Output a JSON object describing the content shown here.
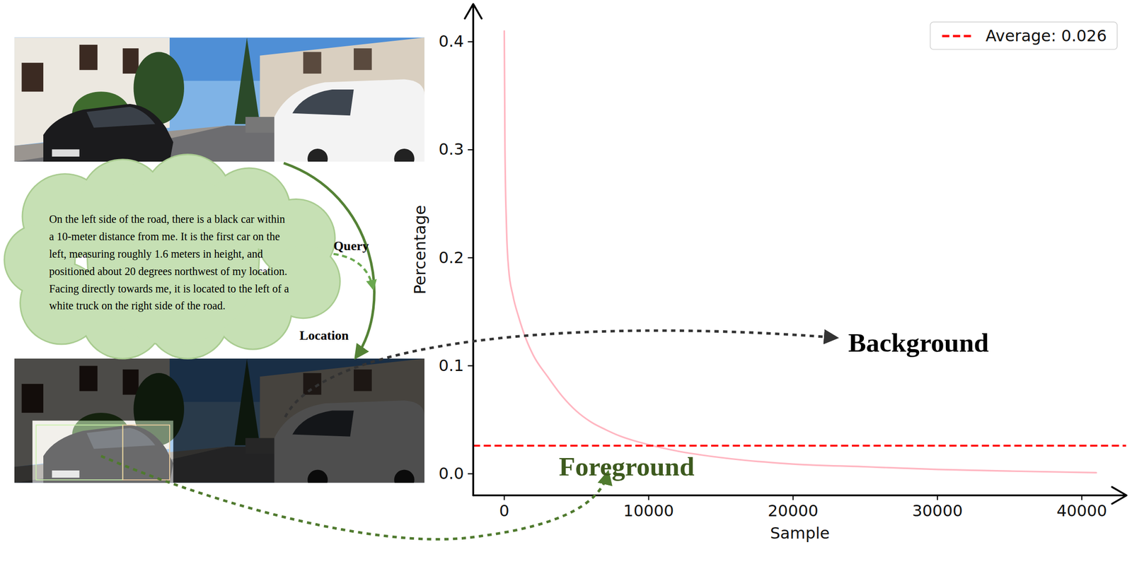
{
  "chart_data": {
    "type": "line",
    "xlabel": "Sample",
    "ylabel": "Percentage",
    "x": [
      0,
      50,
      150,
      300,
      600,
      1000,
      1500,
      2000,
      3000,
      4000,
      5000,
      6000,
      7000,
      8000,
      10000,
      12000,
      15000,
      20000,
      25000,
      30000,
      35000,
      41000
    ],
    "series": [
      {
        "color": "#ffb6c1",
        "values": [
          0.41,
          0.3,
          0.23,
          0.19,
          0.165,
          0.145,
          0.125,
          0.11,
          0.09,
          0.072,
          0.058,
          0.048,
          0.041,
          0.035,
          0.027,
          0.021,
          0.015,
          0.009,
          0.0065,
          0.004,
          0.0025,
          0.001
        ]
      },
      {
        "name": "Average: 0.026",
        "type": "hline",
        "color": "#ff0000",
        "line_style": "dashed",
        "value": 0.026
      }
    ],
    "xlim": [
      -2150,
      43100
    ],
    "ylim": [
      -0.02,
      0.435
    ],
    "xticks": [
      0,
      10000,
      20000,
      30000,
      40000
    ],
    "yticks": [
      {
        "value": 0,
        "label": "0.0"
      },
      {
        "value": 0.1,
        "label": "0.1"
      },
      {
        "value": 0.2,
        "label": "0.2"
      },
      {
        "value": 0.3,
        "label": "0.3"
      },
      {
        "value": 0.4,
        "label": "0.4"
      }
    ],
    "legend": "upper right",
    "grid": false
  },
  "figure": {
    "query_text": "On the left side of the road, there is a black car within a 10-meter distance from me. It is the first car on the left, measuring roughly 1.6 meters in height, and positioned about 20 degrees northwest of my location. Facing directly towards me, it is located to the left of a white truck on the right side of the road.",
    "query_label": "Query",
    "location_label": "Location",
    "background_label": "Background",
    "foreground_label": "Foreground"
  }
}
